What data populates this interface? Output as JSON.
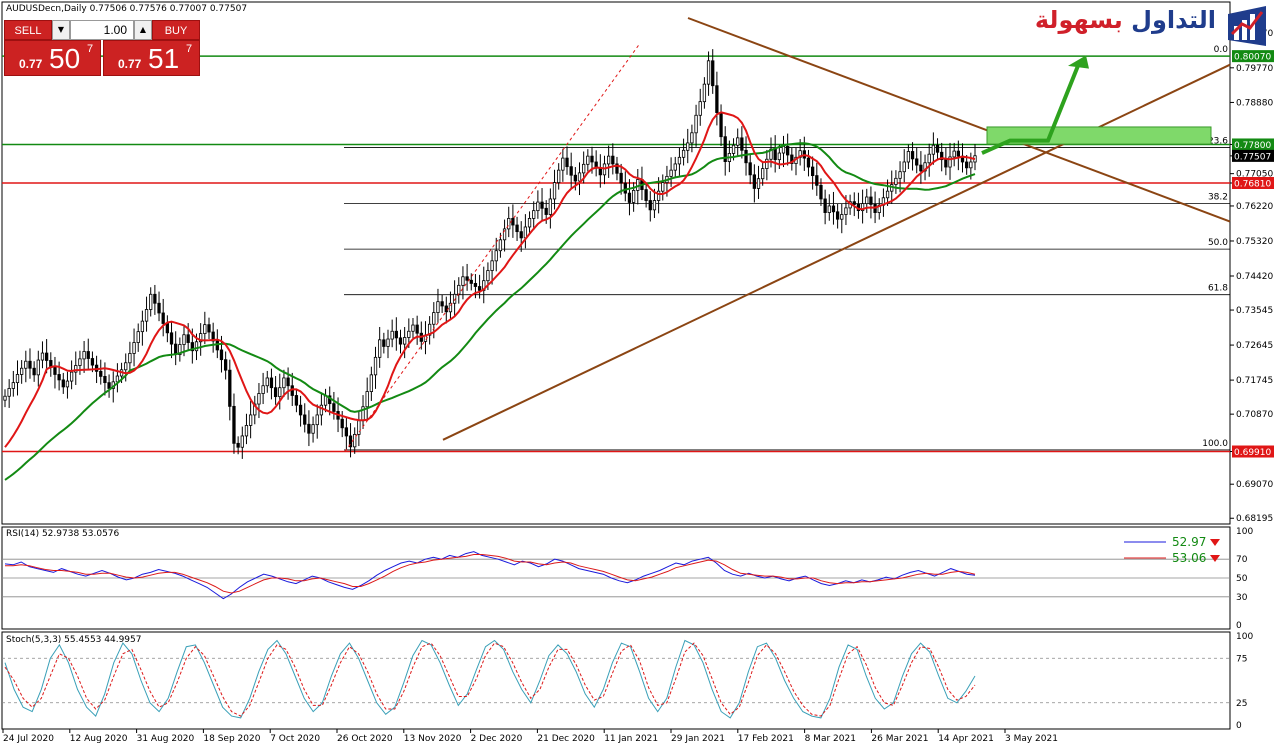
{
  "header": {
    "symbol_line": "AUDUSDecn,Daily  0.77506 0.77576 0.77007 0.77507",
    "rsi_label": "RSI(14) 52.9738 53.0576",
    "stoch_label": "Stoch(5,3,3) 55.4553 44.9957"
  },
  "trade_panel": {
    "sell_label": "SELL",
    "buy_label": "BUY",
    "volume": "1.00",
    "sell_small": "0.77",
    "sell_big": "50",
    "sell_sup": "7",
    "buy_small": "0.77",
    "buy_big": "51",
    "buy_sup": "7"
  },
  "logo": {
    "part1": "التداول",
    "part2": "بسهولة"
  },
  "colors": {
    "green_line": "#138a13",
    "red_line": "#e01616",
    "brown_line": "#8b4513",
    "candle": "#000000",
    "rsi_main": "#1a1adc",
    "rsi_signal": "#dc1a1a",
    "stoch_main": "#3aa0b8",
    "stoch_signal": "#dc1a1a",
    "zone": "#7fd96a"
  },
  "chart_data": [
    {
      "type": "candlestick",
      "title": "AUDUSDecn,Daily",
      "ylim": [
        0.6815,
        0.8105
      ],
      "y_ticks": [
        "0.80670",
        "0.79770",
        "0.78880",
        "0.77800",
        "0.77507",
        "0.77050",
        "0.76810",
        "0.76220",
        "0.75320",
        "0.74420",
        "0.73545",
        "0.72645",
        "0.71745",
        "0.70870",
        "0.69910",
        "0.69070",
        "0.68195"
      ],
      "x_ticks": [
        "24 Jul 2020",
        "12 Aug 2020",
        "31 Aug 2020",
        "18 Sep 2020",
        "7 Oct 2020",
        "26 Oct 2020",
        "13 Nov 2020",
        "2 Dec 2020",
        "21 Dec 2020",
        "11 Jan 2021",
        "29 Jan 2021",
        "17 Feb 2021",
        "8 Mar 2021",
        "26 Mar 2021",
        "14 Apr 2021",
        "3 May 2021"
      ],
      "price_tags": [
        {
          "value": "0.80070",
          "color": "#138a13"
        },
        {
          "value": "0.77800",
          "color": "#138a13"
        },
        {
          "value": "0.77507",
          "color": "#000000"
        },
        {
          "value": "0.76810",
          "color": "#e01616"
        },
        {
          "value": "0.69910",
          "color": "#e01616"
        }
      ],
      "fib_levels": [
        {
          "label": "0.0",
          "price": 0.8007
        },
        {
          "label": "23.6",
          "price": 0.7772
        },
        {
          "label": "38.2",
          "price": 0.7628
        },
        {
          "label": "50.0",
          "price": 0.7511
        },
        {
          "label": "61.8",
          "price": 0.7394
        },
        {
          "label": "100.0",
          "price": 0.6995
        }
      ],
      "horizontal_lines": [
        {
          "price": 0.8007,
          "color": "green"
        },
        {
          "price": 0.778,
          "color": "green"
        },
        {
          "price": 0.7681,
          "color": "red"
        },
        {
          "price": 0.6991,
          "color": "red"
        }
      ],
      "close_series": [
        0.7133,
        0.7153,
        0.7168,
        0.7189,
        0.7205,
        0.7223,
        0.7205,
        0.7188,
        0.7226,
        0.7244,
        0.7225,
        0.7207,
        0.7189,
        0.7175,
        0.7157,
        0.7172,
        0.7195,
        0.7212,
        0.7229,
        0.7248,
        0.723,
        0.7213,
        0.7197,
        0.7184,
        0.7168,
        0.7153,
        0.717,
        0.7185,
        0.7201,
        0.7219,
        0.7243,
        0.7271,
        0.7299,
        0.7326,
        0.7356,
        0.7395,
        0.7372,
        0.7347,
        0.732,
        0.7296,
        0.7267,
        0.724,
        0.7266,
        0.7291,
        0.7271,
        0.725,
        0.7273,
        0.7294,
        0.7317,
        0.7298,
        0.7275,
        0.7252,
        0.7227,
        0.72,
        0.7107,
        0.7012,
        0.7002,
        0.7031,
        0.7058,
        0.7085,
        0.7113,
        0.714,
        0.716,
        0.718,
        0.7155,
        0.7132,
        0.7155,
        0.718,
        0.716,
        0.7135,
        0.711,
        0.7085,
        0.7061,
        0.7038,
        0.706,
        0.7085,
        0.711,
        0.7134,
        0.7114,
        0.7094,
        0.7074,
        0.7052,
        0.7031,
        0.7003,
        0.7035,
        0.707,
        0.7106,
        0.7145,
        0.7188,
        0.7233,
        0.7278,
        0.7261,
        0.728,
        0.73,
        0.7283,
        0.7267,
        0.7284,
        0.73,
        0.7316,
        0.7295,
        0.7274,
        0.729,
        0.7318,
        0.7348,
        0.7376,
        0.7365,
        0.735,
        0.7372,
        0.7395,
        0.7418,
        0.744,
        0.7431,
        0.7423,
        0.7415,
        0.7405,
        0.743,
        0.7456,
        0.7481,
        0.7507,
        0.7535,
        0.7563,
        0.759,
        0.7573,
        0.7556,
        0.754,
        0.7568,
        0.759,
        0.761,
        0.7632,
        0.7616,
        0.76,
        0.764,
        0.7682,
        0.7714,
        0.7745,
        0.7723,
        0.7701,
        0.7686,
        0.7707,
        0.7729,
        0.775,
        0.7735,
        0.7719,
        0.7702,
        0.773,
        0.775,
        0.773,
        0.7706,
        0.7681,
        0.7655,
        0.7631,
        0.7662,
        0.769,
        0.7664,
        0.7636,
        0.7612,
        0.7636,
        0.766,
        0.7682,
        0.7698,
        0.7714,
        0.773,
        0.7747,
        0.7765,
        0.7784,
        0.781,
        0.7855,
        0.789,
        0.7935,
        0.7995,
        0.7931,
        0.7862,
        0.78,
        0.7736,
        0.7757,
        0.7778,
        0.7797,
        0.7765,
        0.7733,
        0.7702,
        0.7667,
        0.7692,
        0.7718,
        0.7742,
        0.7768,
        0.7741,
        0.7758,
        0.7775,
        0.7753,
        0.7731,
        0.7747,
        0.7764,
        0.7745,
        0.7722,
        0.77,
        0.7675,
        0.764,
        0.7605,
        0.7622,
        0.7607,
        0.7588,
        0.76,
        0.7617,
        0.7633,
        0.7626,
        0.761,
        0.7628,
        0.7645,
        0.7626,
        0.7605,
        0.7624,
        0.7643,
        0.766,
        0.7677,
        0.7693,
        0.771,
        0.7735,
        0.7762,
        0.7743,
        0.7727,
        0.7712,
        0.7733,
        0.7755,
        0.7778,
        0.776,
        0.7741,
        0.7722,
        0.7748,
        0.7763,
        0.775,
        0.7735,
        0.772,
        0.7735,
        0.7751
      ],
      "ma_red": {
        "color": "red",
        "start": 0.7002,
        "end": 0.7705
      },
      "ma_green": {
        "color": "green",
        "start": 0.6918,
        "end": 0.7701
      },
      "trendlines": [
        {
          "name": "descending resistance",
          "from": [
            "17 Feb 2021",
            0.8025
          ],
          "to": [
            "3 May 2021+",
            0.7582
          ]
        },
        {
          "name": "ascending support",
          "from": [
            "20 Oct 2020",
            0.7021
          ],
          "to": [
            "3 May 2021+",
            0.7985
          ]
        }
      ],
      "target_zone": {
        "price_low": 0.7781,
        "price_high": 0.7825
      },
      "projection_arrow": {
        "from": 0.777,
        "to": 0.8
      }
    },
    {
      "type": "line",
      "title": "RSI(14) 52.9738 53.0576",
      "ylim": [
        0,
        100
      ],
      "y_ticks": [
        100,
        70,
        50,
        30,
        0
      ],
      "levels": [
        70,
        50,
        30
      ],
      "series": [
        {
          "name": "52.97",
          "values": [
            65,
            64,
            67,
            62,
            60,
            58,
            56,
            60,
            57,
            54,
            52,
            55,
            58,
            55,
            51,
            48,
            50,
            54,
            56,
            59,
            57,
            55,
            52,
            48,
            44,
            40,
            34,
            28,
            33,
            40,
            46,
            50,
            54,
            52,
            49,
            46,
            44,
            48,
            52,
            50,
            46,
            43,
            40,
            38,
            42,
            47,
            53,
            58,
            62,
            66,
            68,
            66,
            70,
            72,
            70,
            74,
            72,
            76,
            78,
            74,
            72,
            70,
            67,
            64,
            68,
            66,
            62,
            65,
            70,
            68,
            64,
            60,
            58,
            56,
            54,
            50,
            47,
            45,
            48,
            52,
            55,
            58,
            62,
            66,
            64,
            68,
            70,
            72,
            66,
            58,
            54,
            52,
            55,
            52,
            50,
            52,
            49,
            47,
            50,
            52,
            48,
            44,
            42,
            44,
            47,
            45,
            48,
            46,
            48,
            51,
            49,
            53,
            56,
            58,
            55,
            52,
            56,
            60,
            57,
            54,
            53
          ]
        },
        {
          "name": "53.06",
          "values": [
            63,
            63,
            64,
            63,
            61,
            59,
            58,
            58,
            57,
            56,
            54,
            54,
            55,
            55,
            53,
            51,
            50,
            51,
            53,
            55,
            56,
            56,
            54,
            51,
            48,
            45,
            41,
            36,
            34,
            36,
            40,
            44,
            48,
            50,
            50,
            49,
            47,
            47,
            49,
            50,
            48,
            46,
            44,
            41,
            41,
            44,
            48,
            52,
            57,
            61,
            64,
            66,
            67,
            69,
            70,
            71,
            72,
            73,
            75,
            75,
            74,
            73,
            71,
            68,
            67,
            67,
            65,
            64,
            66,
            67,
            66,
            63,
            61,
            59,
            57,
            54,
            51,
            48,
            47,
            49,
            51,
            54,
            57,
            61,
            63,
            65,
            67,
            69,
            68,
            64,
            59,
            55,
            54,
            53,
            52,
            52,
            51,
            49,
            49,
            50,
            50,
            47,
            45,
            44,
            45,
            45,
            46,
            46,
            47,
            48,
            49,
            50,
            52,
            54,
            55,
            54,
            54,
            56,
            57,
            56,
            54
          ]
        }
      ]
    },
    {
      "type": "line",
      "title": "Stoch(5,3,3) 55.4553 44.9957",
      "ylim": [
        0,
        100
      ],
      "y_ticks": [
        100,
        75,
        25,
        0
      ],
      "levels": [
        75,
        25
      ],
      "series": [
        {
          "name": "%K",
          "values": [
            70,
            40,
            20,
            15,
            40,
            75,
            90,
            70,
            40,
            20,
            10,
            35,
            70,
            92,
            80,
            50,
            25,
            15,
            30,
            60,
            88,
            90,
            70,
            45,
            20,
            10,
            8,
            30,
            60,
            85,
            95,
            80,
            55,
            30,
            15,
            25,
            55,
            80,
            92,
            75,
            50,
            25,
            12,
            20,
            48,
            78,
            95,
            90,
            70,
            45,
            22,
            35,
            62,
            88,
            95,
            85,
            60,
            40,
            25,
            50,
            78,
            90,
            80,
            60,
            35,
            20,
            40,
            70,
            92,
            88,
            60,
            30,
            15,
            30,
            65,
            95,
            90,
            70,
            40,
            15,
            8,
            25,
            60,
            88,
            92,
            75,
            50,
            30,
            15,
            10,
            8,
            30,
            65,
            90,
            85,
            55,
            30,
            18,
            25,
            55,
            80,
            92,
            82,
            55,
            30,
            25,
            38,
            55
          ]
        },
        {
          "name": "%D",
          "values": [
            65,
            50,
            30,
            20,
            30,
            55,
            80,
            75,
            55,
            30,
            18,
            28,
            55,
            80,
            85,
            62,
            38,
            20,
            25,
            48,
            75,
            88,
            78,
            55,
            32,
            15,
            10,
            22,
            48,
            75,
            90,
            85,
            65,
            40,
            22,
            22,
            45,
            70,
            88,
            80,
            60,
            35,
            18,
            18,
            38,
            65,
            88,
            92,
            78,
            55,
            32,
            32,
            52,
            78,
            92,
            88,
            70,
            48,
            30,
            40,
            65,
            85,
            85,
            68,
            45,
            28,
            32,
            58,
            83,
            90,
            72,
            42,
            22,
            25,
            52,
            82,
            92,
            78,
            52,
            25,
            12,
            20,
            48,
            78,
            90,
            80,
            60,
            38,
            22,
            12,
            10,
            22,
            52,
            80,
            88,
            68,
            42,
            25,
            22,
            45,
            70,
            88,
            86,
            65,
            40,
            28,
            32,
            45
          ]
        }
      ]
    }
  ]
}
